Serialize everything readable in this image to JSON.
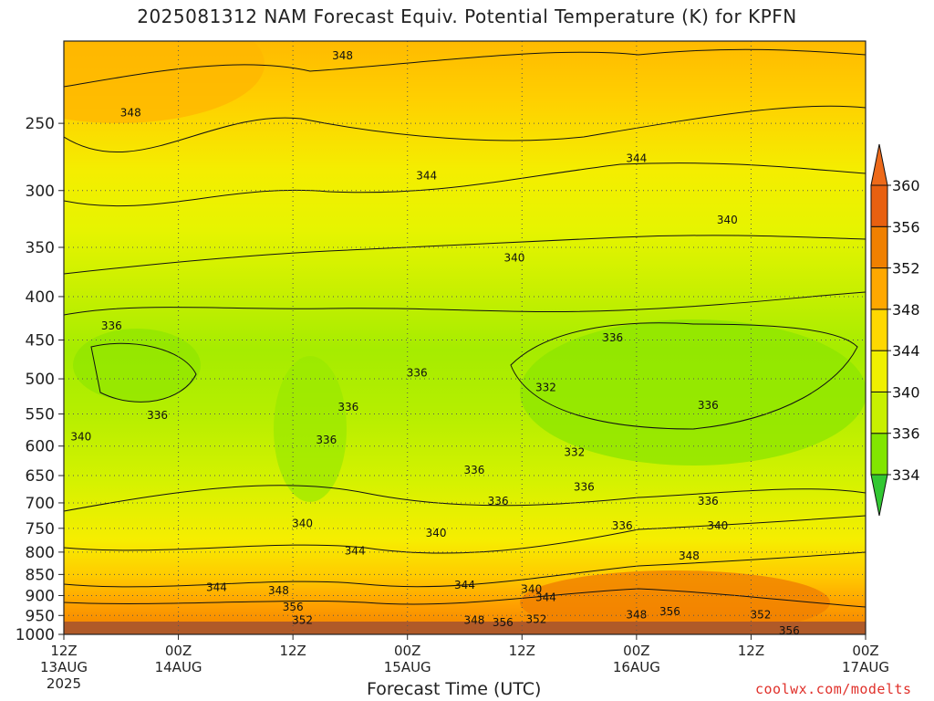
{
  "chart_data": {
    "type": "heatmap",
    "title": "2025081312 NAM Forecast Equiv. Potential Temperature (K) for KPFN",
    "xlabel": "Forecast Time (UTC)",
    "ylabel": "",
    "y_scale": "log",
    "y_inverted": true,
    "y_ticks": [
      250,
      300,
      350,
      400,
      450,
      500,
      550,
      600,
      650,
      700,
      750,
      800,
      850,
      900,
      950,
      1000
    ],
    "ylim": [
      1000,
      200
    ],
    "x_ticks": [
      {
        "hour": 0,
        "label": "12Z",
        "sub": "13AUG",
        "year": "2025"
      },
      {
        "hour": 12,
        "label": "00Z",
        "sub": "14AUG"
      },
      {
        "hour": 24,
        "label": "12Z",
        "sub": ""
      },
      {
        "hour": 36,
        "label": "00Z",
        "sub": "15AUG"
      },
      {
        "hour": 48,
        "label": "12Z",
        "sub": ""
      },
      {
        "hour": 60,
        "label": "00Z",
        "sub": "16AUG"
      },
      {
        "hour": 72,
        "label": "12Z",
        "sub": ""
      },
      {
        "hour": 84,
        "label": "00Z",
        "sub": "17AUG"
      }
    ],
    "xlim": [
      0,
      84
    ],
    "grid": true,
    "colorbar": {
      "levels": [
        334,
        336,
        340,
        344,
        348,
        352,
        356,
        360
      ],
      "colors": [
        "#32c832",
        "#82e600",
        "#c8f000",
        "#f0f000",
        "#ffd800",
        "#ffa800",
        "#f08000",
        "#e86010"
      ],
      "underflow_color": "#32c832",
      "overflow_color": "#ee6a1a"
    },
    "contour_labels": [
      {
        "hour": 29.2,
        "p": 208,
        "label": "348"
      },
      {
        "hour": 7,
        "p": 243,
        "label": "348"
      },
      {
        "hour": 38,
        "p": 288,
        "label": "344"
      },
      {
        "hour": 60,
        "p": 275,
        "label": "344"
      },
      {
        "hour": 69.5,
        "p": 325,
        "label": "340"
      },
      {
        "hour": 47.2,
        "p": 360,
        "label": "340"
      },
      {
        "hour": 5,
        "p": 433,
        "label": "336"
      },
      {
        "hour": 57.5,
        "p": 447,
        "label": "336"
      },
      {
        "hour": 37,
        "p": 492,
        "label": "336"
      },
      {
        "hour": 50.5,
        "p": 512,
        "label": "332"
      },
      {
        "hour": 9.8,
        "p": 552,
        "label": "336"
      },
      {
        "hour": 29.8,
        "p": 540,
        "label": "336"
      },
      {
        "hour": 67.5,
        "p": 537,
        "label": "336"
      },
      {
        "hour": 27.5,
        "p": 590,
        "label": "336"
      },
      {
        "hour": 53.5,
        "p": 610,
        "label": "332"
      },
      {
        "hour": 1.8,
        "p": 585,
        "label": "340"
      },
      {
        "hour": 43,
        "p": 640,
        "label": "336"
      },
      {
        "hour": 54.5,
        "p": 670,
        "label": "336"
      },
      {
        "hour": 45.5,
        "p": 697,
        "label": "336"
      },
      {
        "hour": 67.5,
        "p": 697,
        "label": "336"
      },
      {
        "hour": 58.5,
        "p": 745,
        "label": "336"
      },
      {
        "hour": 25,
        "p": 740,
        "label": "340"
      },
      {
        "hour": 39,
        "p": 760,
        "label": "340"
      },
      {
        "hour": 68.5,
        "p": 745,
        "label": "340"
      },
      {
        "hour": 30.5,
        "p": 797,
        "label": "344"
      },
      {
        "hour": 65.5,
        "p": 808,
        "label": "348"
      },
      {
        "hour": 16,
        "p": 880,
        "label": "344"
      },
      {
        "hour": 22.5,
        "p": 888,
        "label": "348"
      },
      {
        "hour": 42,
        "p": 875,
        "label": "344"
      },
      {
        "hour": 49,
        "p": 885,
        "label": "340"
      },
      {
        "hour": 50.5,
        "p": 905,
        "label": "344"
      },
      {
        "hour": 24,
        "p": 928,
        "label": "356"
      },
      {
        "hour": 25,
        "p": 962,
        "label": "352"
      },
      {
        "hour": 43,
        "p": 962,
        "label": "348"
      },
      {
        "hour": 46,
        "p": 968,
        "label": "356"
      },
      {
        "hour": 49.5,
        "p": 960,
        "label": "352"
      },
      {
        "hour": 60,
        "p": 948,
        "label": "348"
      },
      {
        "hour": 63.5,
        "p": 940,
        "label": "356"
      },
      {
        "hour": 73,
        "p": 948,
        "label": "352"
      },
      {
        "hour": 76,
        "p": 990,
        "label": "356"
      }
    ]
  },
  "watermark": "coolwx.com/modelts"
}
